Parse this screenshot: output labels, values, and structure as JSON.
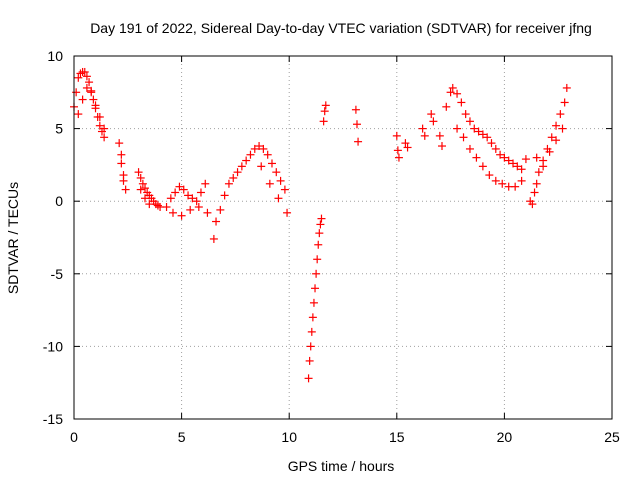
{
  "chart_data": {
    "type": "scatter",
    "title": "Day 191 of 2022, Sidereal Day-to-day VTEC variation (SDTVAR) for receiver jfng",
    "xlabel": "GPS time / hours",
    "ylabel": "SDTVAR / TECUs",
    "xlim": [
      0,
      25
    ],
    "ylim": [
      -15,
      10
    ],
    "xticks": [
      0,
      5,
      10,
      15,
      20,
      25
    ],
    "yticks": [
      -15,
      -10,
      -5,
      0,
      5,
      10
    ],
    "grid": true,
    "marker": "+",
    "color": "#ff0000",
    "series": [
      {
        "name": "SDTVAR",
        "x": [
          0.0,
          0.1,
          0.2,
          0.3,
          0.4,
          0.5,
          0.6,
          0.7,
          0.8,
          0.9,
          1.0,
          1.1,
          1.2,
          1.3,
          1.4,
          0.2,
          0.4,
          0.6,
          0.8,
          1.0,
          1.2,
          1.4,
          2.1,
          2.2,
          2.3,
          2.4,
          2.3,
          2.2,
          3.0,
          3.1,
          3.2,
          3.3,
          3.4,
          3.5,
          3.6,
          3.7,
          3.8,
          3.9,
          4.0,
          3.1,
          3.3,
          3.5,
          4.3,
          4.5,
          4.7,
          4.9,
          5.1,
          5.3,
          5.5,
          5.7,
          5.9,
          6.1,
          4.6,
          5.0,
          5.4,
          5.8,
          6.2,
          6.5,
          6.6,
          6.8,
          7.0,
          7.2,
          7.4,
          7.6,
          7.8,
          8.0,
          8.2,
          8.4,
          8.6,
          8.8,
          9.0,
          9.2,
          9.4,
          9.6,
          9.8,
          8.7,
          9.1,
          9.5,
          9.9,
          10.9,
          10.95,
          11.0,
          11.05,
          11.1,
          11.15,
          11.2,
          11.25,
          11.3,
          11.35,
          11.4,
          11.45,
          11.5,
          11.6,
          11.65,
          11.7,
          13.1,
          13.15,
          13.2,
          15.0,
          15.05,
          15.1,
          15.4,
          15.5,
          16.2,
          16.3,
          16.6,
          16.7,
          17.0,
          17.1,
          17.3,
          17.5,
          17.6,
          17.8,
          18.0,
          18.2,
          18.4,
          18.6,
          18.8,
          19.0,
          19.2,
          19.4,
          19.6,
          19.8,
          20.0,
          20.2,
          20.4,
          20.6,
          20.8,
          21.0,
          17.8,
          18.1,
          18.4,
          18.7,
          19.0,
          19.3,
          19.6,
          19.9,
          20.2,
          20.5,
          20.8,
          21.2,
          21.3,
          21.4,
          21.5,
          21.6,
          21.8,
          22.0,
          22.2,
          22.4,
          22.6,
          22.8,
          22.9,
          21.5,
          21.8,
          22.1,
          22.4,
          22.7
        ],
        "y": [
          6.5,
          7.5,
          8.5,
          8.8,
          8.9,
          8.9,
          8.6,
          8.2,
          7.6,
          7.0,
          6.4,
          5.8,
          5.2,
          4.8,
          4.4,
          6.0,
          7.0,
          7.8,
          7.5,
          6.6,
          5.8,
          5.0,
          4.0,
          2.6,
          1.4,
          0.8,
          1.8,
          3.2,
          2.0,
          1.6,
          1.2,
          0.9,
          0.6,
          0.4,
          0.2,
          0.0,
          -0.2,
          -0.3,
          -0.4,
          0.8,
          0.2,
          -0.2,
          -0.4,
          0.2,
          0.6,
          1.0,
          0.8,
          0.4,
          0.2,
          0.0,
          0.6,
          1.2,
          -0.8,
          -1.0,
          -0.6,
          -0.4,
          -0.8,
          -2.6,
          -1.4,
          -0.6,
          0.4,
          1.2,
          1.6,
          2.0,
          2.4,
          2.8,
          3.2,
          3.6,
          3.8,
          3.6,
          3.2,
          2.6,
          2.0,
          1.4,
          0.8,
          2.4,
          1.2,
          0.2,
          -0.8,
          -12.2,
          -11.0,
          -10.0,
          -9.0,
          -8.0,
          -7.0,
          -6.0,
          -5.0,
          -4.0,
          -3.0,
          -2.2,
          -1.6,
          -1.2,
          5.5,
          6.2,
          6.6,
          6.3,
          5.3,
          4.1,
          4.5,
          3.5,
          3.0,
          4.0,
          3.7,
          5.0,
          4.5,
          6.0,
          5.5,
          4.5,
          3.8,
          6.5,
          7.5,
          7.8,
          7.4,
          6.8,
          6.0,
          5.5,
          5.0,
          4.8,
          4.6,
          4.4,
          4.0,
          3.6,
          3.2,
          3.0,
          2.8,
          2.6,
          2.4,
          2.2,
          2.9,
          5.0,
          4.4,
          3.6,
          3.0,
          2.4,
          1.8,
          1.4,
          1.2,
          1.0,
          1.0,
          1.4,
          0.0,
          -0.2,
          0.6,
          1.2,
          2.0,
          2.8,
          3.6,
          4.4,
          5.2,
          6.0,
          6.8,
          7.8,
          3.0,
          2.4,
          3.4,
          4.2,
          5.0
        ]
      }
    ]
  }
}
